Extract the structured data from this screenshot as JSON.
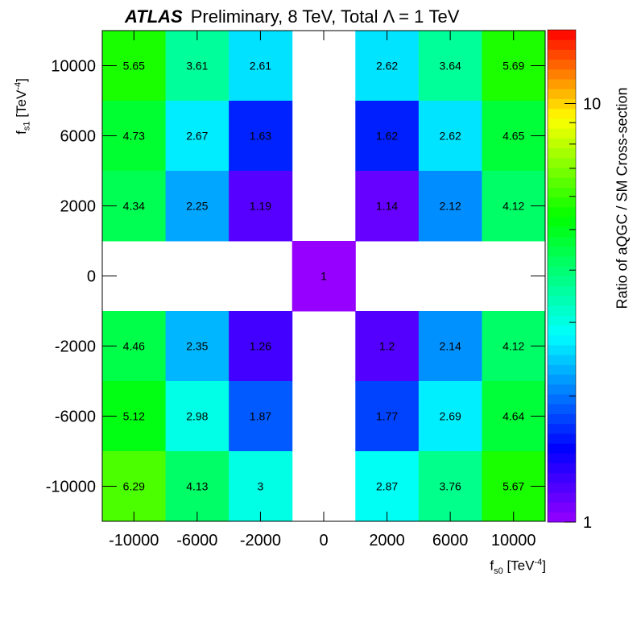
{
  "title": {
    "brand": "ATLAS",
    "rest": "Preliminary, 8 TeV, Total Λ = 1 TeV"
  },
  "axes": {
    "x": {
      "var": "f",
      "sub": "s0",
      "unit_pre": " [TeV",
      "unit_sup": "-4",
      "unit_post": "]"
    },
    "y": {
      "var": "f",
      "sub": "s1",
      "unit_pre": " [TeV",
      "unit_sup": "-4",
      "unit_post": "]"
    },
    "z": "Ratio of aQGC / SM Cross-section"
  },
  "chart_data": {
    "type": "heatmap",
    "title": "ATLAS Preliminary, 8 TeV, Total Λ = 1 TeV",
    "xlabel": "f_s0 [TeV^-4]",
    "ylabel": "f_s1 [TeV^-4]",
    "zlabel": "Ratio of aQGC / SM Cross-section",
    "x_categories": [
      "-10000",
      "-6000",
      "-2000",
      "0",
      "2000",
      "6000",
      "10000"
    ],
    "y_categories": [
      "10000",
      "6000",
      "2000",
      "0",
      "-2000",
      "-6000",
      "-10000"
    ],
    "z_scale": "log",
    "z_range": [
      1,
      15
    ],
    "z_ticks": [
      "1",
      "10"
    ],
    "colormap": "rainbow (violet → blue → cyan → green → yellow → red)",
    "values": [
      [
        5.65,
        3.61,
        2.61,
        null,
        2.62,
        3.64,
        5.69
      ],
      [
        4.73,
        2.67,
        1.63,
        null,
        1.62,
        2.62,
        4.65
      ],
      [
        4.34,
        2.25,
        1.19,
        null,
        1.14,
        2.12,
        4.12
      ],
      [
        null,
        null,
        null,
        1,
        null,
        null,
        null
      ],
      [
        4.46,
        2.35,
        1.26,
        null,
        1.2,
        2.14,
        4.12
      ],
      [
        5.12,
        2.98,
        1.87,
        null,
        1.77,
        2.69,
        4.64
      ],
      [
        6.29,
        4.13,
        3,
        null,
        2.87,
        3.76,
        5.67
      ]
    ]
  }
}
